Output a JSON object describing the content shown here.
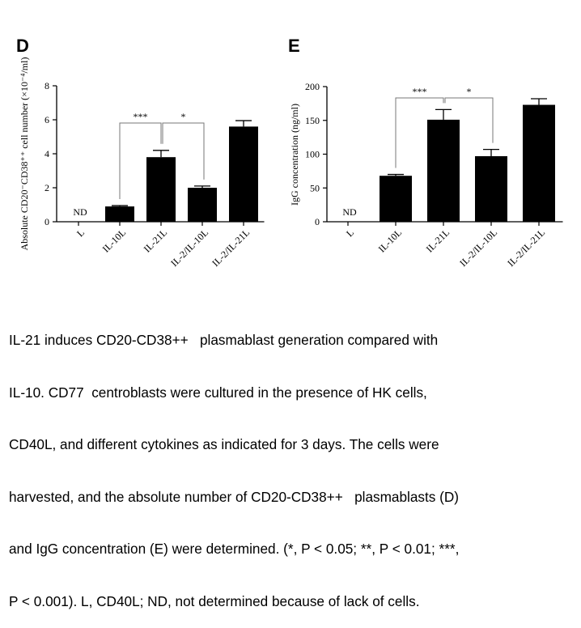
{
  "figure": {
    "caption_lines": [
      "IL-21 induces CD20-CD38++   plasmablast generation compared with",
      "IL-10. CD77  centroblasts were cultured in the presence of HK cells,",
      "CD40L, and different cytokines as indicated for 3 days. The cells were",
      "harvested, and the absolute number of CD20-CD38++   plasmablasts (D)",
      "and IgG concentration (E) were determined. (*, P < 0.05; **, P < 0.01; ***,",
      "P < 0.001). L, CD40L; ND, not determined because of lack of cells."
    ]
  },
  "chart_data": [
    {
      "panel": "D",
      "type": "bar",
      "categories": [
        "L",
        "IL-10L",
        "IL-21L",
        "IL-2/IL-10L",
        "IL-2/IL-21L"
      ],
      "values": [
        null,
        0.9,
        3.8,
        2.0,
        5.6
      ],
      "errors": [
        null,
        0.05,
        0.4,
        0.1,
        0.35
      ],
      "not_determined_label": "ND",
      "ylabel": "Absolute CD20⁻CD38⁺⁺ cell number (×10⁻⁴/ml)",
      "ylim": [
        0,
        8
      ],
      "yticks": [
        0,
        2,
        4,
        6,
        8
      ],
      "significance": [
        {
          "from": "IL-10L",
          "to": "IL-21L",
          "label": "***"
        },
        {
          "from": "IL-21L",
          "to": "IL-2/IL-10L",
          "label": "*"
        }
      ]
    },
    {
      "panel": "E",
      "type": "bar",
      "categories": [
        "L",
        "IL-10L",
        "IL-21L",
        "IL-2/IL-10L",
        "IL-2/IL-21L"
      ],
      "values": [
        null,
        68,
        151,
        97,
        173
      ],
      "errors": [
        null,
        2,
        15,
        10,
        9
      ],
      "not_determined_label": "ND",
      "ylabel": "IgG concentration (ng/ml)",
      "ylim": [
        0,
        200
      ],
      "yticks": [
        0,
        50,
        100,
        150,
        200
      ],
      "significance": [
        {
          "from": "IL-10L",
          "to": "IL-21L",
          "label": "***"
        },
        {
          "from": "IL-21L",
          "to": "IL-2/IL-10L",
          "label": "*"
        }
      ]
    }
  ]
}
